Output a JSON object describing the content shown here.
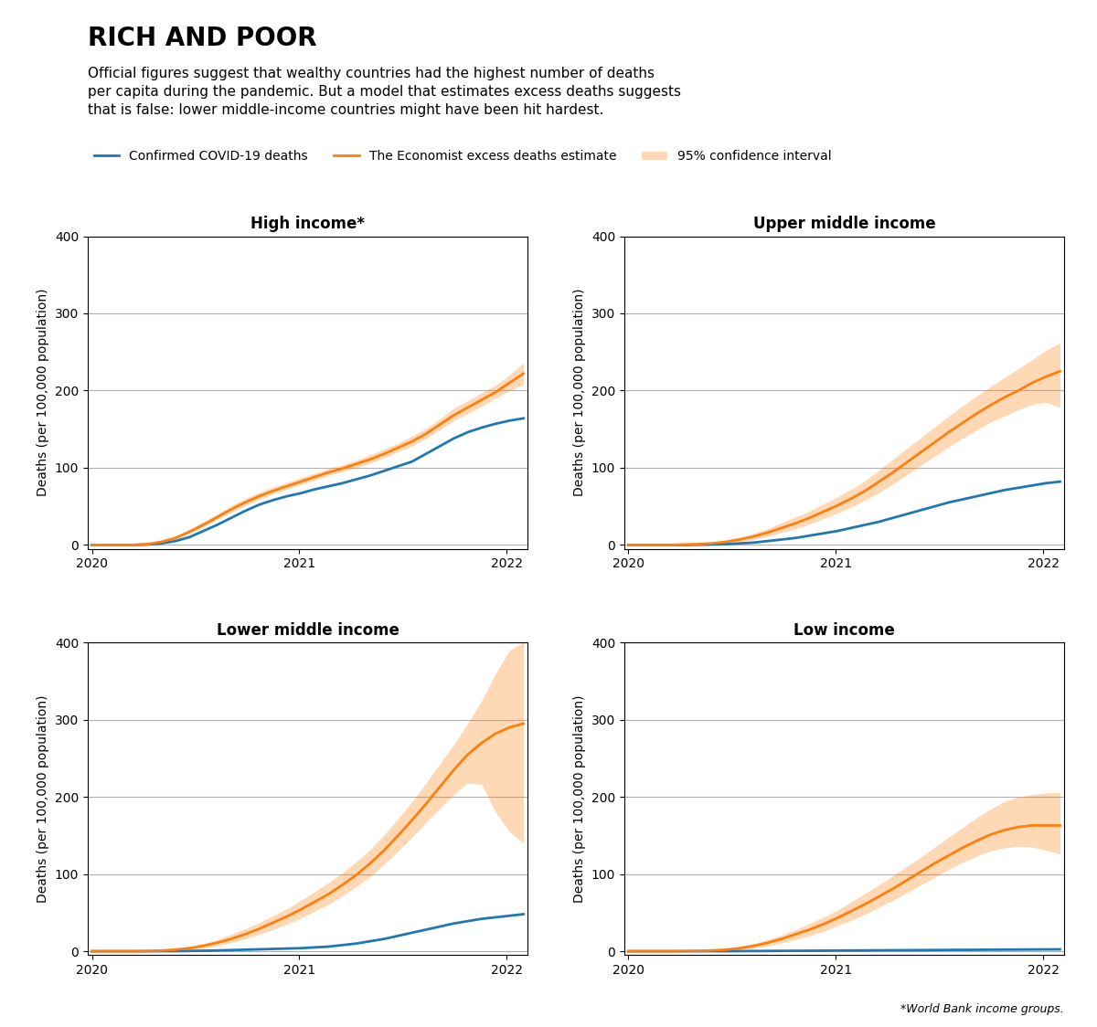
{
  "title": "RICH AND POOR",
  "subtitle": "Official figures suggest that wealthy countries had the highest number of deaths\nper capita during the pandemic. But a model that estimates excess deaths suggests\nthat is false: lower middle-income countries might have been hit hardest.",
  "note": "*World Bank income groups.",
  "legend": "upper left",
  "chart_data": [
    {
      "type": "line",
      "title": "High income*",
      "ylabel": "Deaths (per 100,000 population)",
      "x": [
        2020.0,
        2020.067097,
        2020.134194,
        2020.20129,
        2020.268387,
        2020.335484,
        2020.402581,
        2020.469677,
        2020.536774,
        2020.603871,
        2020.670968,
        2020.738065,
        2020.805161,
        2020.872258,
        2020.939355,
        2021.006452,
        2021.073548,
        2021.140645,
        2021.207742,
        2021.274839,
        2021.341935,
        2021.409032,
        2021.476129,
        2021.543226,
        2021.610323,
        2021.677419,
        2021.744516,
        2021.811613,
        2021.87871,
        2021.945806,
        2022.012903,
        2022.08
      ],
      "xlim": [
        2019.98,
        2022.1
      ],
      "xticks": [
        2020,
        2021,
        2022
      ],
      "ylim": [
        -5,
        400
      ],
      "yticks": [
        0,
        100,
        200,
        300,
        400
      ],
      "grid": true,
      "series": [
        {
          "name": "Confirmed COVID-19 deaths",
          "type": "line",
          "values": [
            0,
            0,
            0,
            0,
            0.5,
            2,
            5,
            10,
            18,
            26,
            35,
            44,
            52,
            58,
            63,
            67,
            72,
            76,
            80,
            85,
            90,
            96,
            102,
            108,
            118,
            128,
            138,
            146,
            152,
            157,
            161,
            164
          ]
        },
        {
          "name": "The Economist excess deaths estimate",
          "type": "line",
          "values": [
            0,
            0,
            0,
            0,
            1,
            4,
            9,
            17,
            26,
            36,
            46,
            55,
            63,
            70,
            76,
            82,
            88,
            94,
            99,
            105,
            111,
            118,
            126,
            134,
            144,
            156,
            168,
            178,
            188,
            198,
            210,
            222
          ]
        },
        {
          "name": "95% confidence interval",
          "type": "band",
          "low": [
            0,
            0,
            0,
            0,
            0.5,
            3,
            7,
            15,
            23,
            33,
            42,
            51,
            59,
            66,
            72,
            78,
            84,
            90,
            95,
            100,
            106,
            113,
            121,
            128,
            138,
            149,
            161,
            170,
            180,
            190,
            200,
            208
          ],
          "high": [
            0,
            0,
            0,
            0,
            1.5,
            5,
            11,
            20,
            30,
            40,
            51,
            60,
            68,
            75,
            81,
            87,
            93,
            99,
            104,
            110,
            117,
            124,
            132,
            141,
            151,
            163,
            177,
            187,
            197,
            207,
            220,
            236
          ]
        }
      ]
    },
    {
      "type": "line",
      "title": "Upper middle income",
      "ylabel": "Deaths (per 100,000 population)",
      "x": [
        2020.0,
        2020.067097,
        2020.134194,
        2020.20129,
        2020.268387,
        2020.335484,
        2020.402581,
        2020.469677,
        2020.536774,
        2020.603871,
        2020.670968,
        2020.738065,
        2020.805161,
        2020.872258,
        2020.939355,
        2021.006452,
        2021.073548,
        2021.140645,
        2021.207742,
        2021.274839,
        2021.341935,
        2021.409032,
        2021.476129,
        2021.543226,
        2021.610323,
        2021.677419,
        2021.744516,
        2021.811613,
        2021.87871,
        2021.945806,
        2022.012903,
        2022.08
      ],
      "xlim": [
        2019.98,
        2022.1
      ],
      "xticks": [
        2020,
        2021,
        2022
      ],
      "ylim": [
        -5,
        400
      ],
      "yticks": [
        0,
        100,
        200,
        300,
        400
      ],
      "grid": true,
      "series": [
        {
          "name": "Confirmed COVID-19 deaths",
          "type": "line",
          "values": [
            0,
            0,
            0,
            0,
            0,
            0.2,
            0.5,
            1,
            2,
            3,
            5,
            7,
            9,
            12,
            15,
            18,
            22,
            26,
            30,
            35,
            40,
            45,
            50,
            55,
            59,
            63,
            67,
            71,
            74,
            77,
            80,
            82
          ]
        },
        {
          "name": "The Economist excess deaths estimate",
          "type": "line",
          "values": [
            0,
            0,
            0,
            0,
            0.5,
            1,
            2,
            4,
            7,
            11,
            16,
            22,
            28,
            35,
            43,
            51,
            60,
            70,
            82,
            94,
            107,
            120,
            133,
            146,
            158,
            170,
            181,
            191,
            200,
            210,
            218,
            225
          ]
        },
        {
          "name": "95% confidence interval",
          "type": "band",
          "low": [
            0,
            0,
            0,
            0,
            0.2,
            0.5,
            1,
            2,
            4,
            7,
            11,
            16,
            21,
            27,
            34,
            41,
            49,
            58,
            68,
            79,
            91,
            103,
            115,
            127,
            138,
            149,
            159,
            167,
            175,
            182,
            185,
            178
          ],
          "high": [
            0,
            0,
            0,
            0,
            0.8,
            1.5,
            3,
            6,
            10,
            15,
            21,
            29,
            36,
            44,
            53,
            62,
            72,
            83,
            97,
            111,
            125,
            139,
            153,
            167,
            180,
            193,
            205,
            217,
            228,
            240,
            252,
            262
          ]
        }
      ]
    },
    {
      "type": "line",
      "title": "Lower middle income",
      "ylabel": "Deaths (per 100,000 population)",
      "x": [
        2020.0,
        2020.067097,
        2020.134194,
        2020.20129,
        2020.268387,
        2020.335484,
        2020.402581,
        2020.469677,
        2020.536774,
        2020.603871,
        2020.670968,
        2020.738065,
        2020.805161,
        2020.872258,
        2020.939355,
        2021.006452,
        2021.073548,
        2021.140645,
        2021.207742,
        2021.274839,
        2021.341935,
        2021.409032,
        2021.476129,
        2021.543226,
        2021.610323,
        2021.677419,
        2021.744516,
        2021.811613,
        2021.87871,
        2021.945806,
        2022.012903,
        2022.08
      ],
      "xlim": [
        2019.98,
        2022.1
      ],
      "xticks": [
        2020,
        2021,
        2022
      ],
      "ylim": [
        -5,
        400
      ],
      "yticks": [
        0,
        100,
        200,
        300,
        400
      ],
      "grid": true,
      "series": [
        {
          "name": "Confirmed COVID-19 deaths",
          "type": "line",
          "values": [
            0,
            0,
            0,
            0,
            0,
            0.1,
            0.2,
            0.4,
            0.7,
            1,
            1.5,
            2,
            2.5,
            3,
            3.5,
            4,
            5,
            6,
            8,
            10,
            13,
            16,
            20,
            24,
            28,
            32,
            36,
            39,
            42,
            44,
            46,
            48
          ]
        },
        {
          "name": "The Economist excess deaths estimate",
          "type": "line",
          "values": [
            0,
            0,
            0,
            0,
            0.3,
            0.8,
            2,
            4,
            7,
            11,
            16,
            22,
            29,
            37,
            45,
            54,
            64,
            74,
            86,
            99,
            114,
            131,
            150,
            170,
            191,
            213,
            235,
            255,
            270,
            282,
            290,
            295
          ]
        },
        {
          "name": "95% confidence interval",
          "type": "band",
          "low": [
            0,
            0,
            0,
            0,
            0.1,
            0.4,
            1,
            2,
            4,
            7,
            11,
            16,
            22,
            28,
            35,
            43,
            52,
            61,
            72,
            84,
            97,
            113,
            130,
            148,
            167,
            185,
            203,
            218,
            216,
            180,
            155,
            140
          ],
          "high": [
            0,
            0,
            0,
            0,
            0.5,
            1.2,
            3,
            6,
            10,
            15,
            22,
            29,
            37,
            46,
            55,
            66,
            77,
            89,
            102,
            116,
            132,
            151,
            172,
            194,
            218,
            243,
            268,
            295,
            325,
            360,
            390,
            400
          ]
        }
      ]
    },
    {
      "type": "line",
      "title": "Low income",
      "ylabel": "Deaths (per 100,000 population)",
      "x": [
        2020.0,
        2020.067097,
        2020.134194,
        2020.20129,
        2020.268387,
        2020.335484,
        2020.402581,
        2020.469677,
        2020.536774,
        2020.603871,
        2020.670968,
        2020.738065,
        2020.805161,
        2020.872258,
        2020.939355,
        2021.006452,
        2021.073548,
        2021.140645,
        2021.207742,
        2021.274839,
        2021.341935,
        2021.409032,
        2021.476129,
        2021.543226,
        2021.610323,
        2021.677419,
        2021.744516,
        2021.811613,
        2021.87871,
        2021.945806,
        2022.012903,
        2022.08
      ],
      "xlim": [
        2019.98,
        2022.1
      ],
      "xticks": [
        2020,
        2021,
        2022
      ],
      "ylim": [
        -5,
        400
      ],
      "yticks": [
        0,
        100,
        200,
        300,
        400
      ],
      "grid": true,
      "series": [
        {
          "name": "Confirmed COVID-19 deaths",
          "type": "line",
          "values": [
            0,
            0,
            0,
            0,
            0,
            0,
            0.1,
            0.1,
            0.2,
            0.3,
            0.4,
            0.5,
            0.6,
            0.7,
            0.8,
            0.9,
            1,
            1.1,
            1.2,
            1.3,
            1.4,
            1.5,
            1.6,
            1.7,
            1.8,
            1.9,
            2,
            2.1,
            2.2,
            2.3,
            2.4,
            2.5
          ]
        },
        {
          "name": "The Economist excess deaths estimate",
          "type": "line",
          "values": [
            0,
            0,
            0,
            0,
            0.2,
            0.5,
            1,
            2,
            4,
            7,
            11,
            16,
            22,
            28,
            35,
            43,
            52,
            61,
            71,
            81,
            92,
            103,
            114,
            124,
            134,
            143,
            151,
            157,
            161,
            163,
            163,
            163
          ]
        },
        {
          "name": "95% confidence interval",
          "type": "band",
          "low": [
            0,
            0,
            0,
            0,
            0.1,
            0.2,
            0.5,
            1,
            2,
            4,
            7,
            11,
            15,
            20,
            26,
            33,
            40,
            48,
            57,
            66,
            76,
            86,
            96,
            106,
            115,
            123,
            130,
            134,
            136,
            135,
            131,
            126
          ],
          "high": [
            0,
            0,
            0,
            0,
            0.3,
            0.8,
            1.5,
            3,
            6,
            10,
            15,
            21,
            28,
            36,
            44,
            53,
            64,
            75,
            86,
            98,
            110,
            122,
            135,
            148,
            160,
            173,
            184,
            194,
            200,
            203,
            205,
            206
          ]
        }
      ]
    }
  ]
}
